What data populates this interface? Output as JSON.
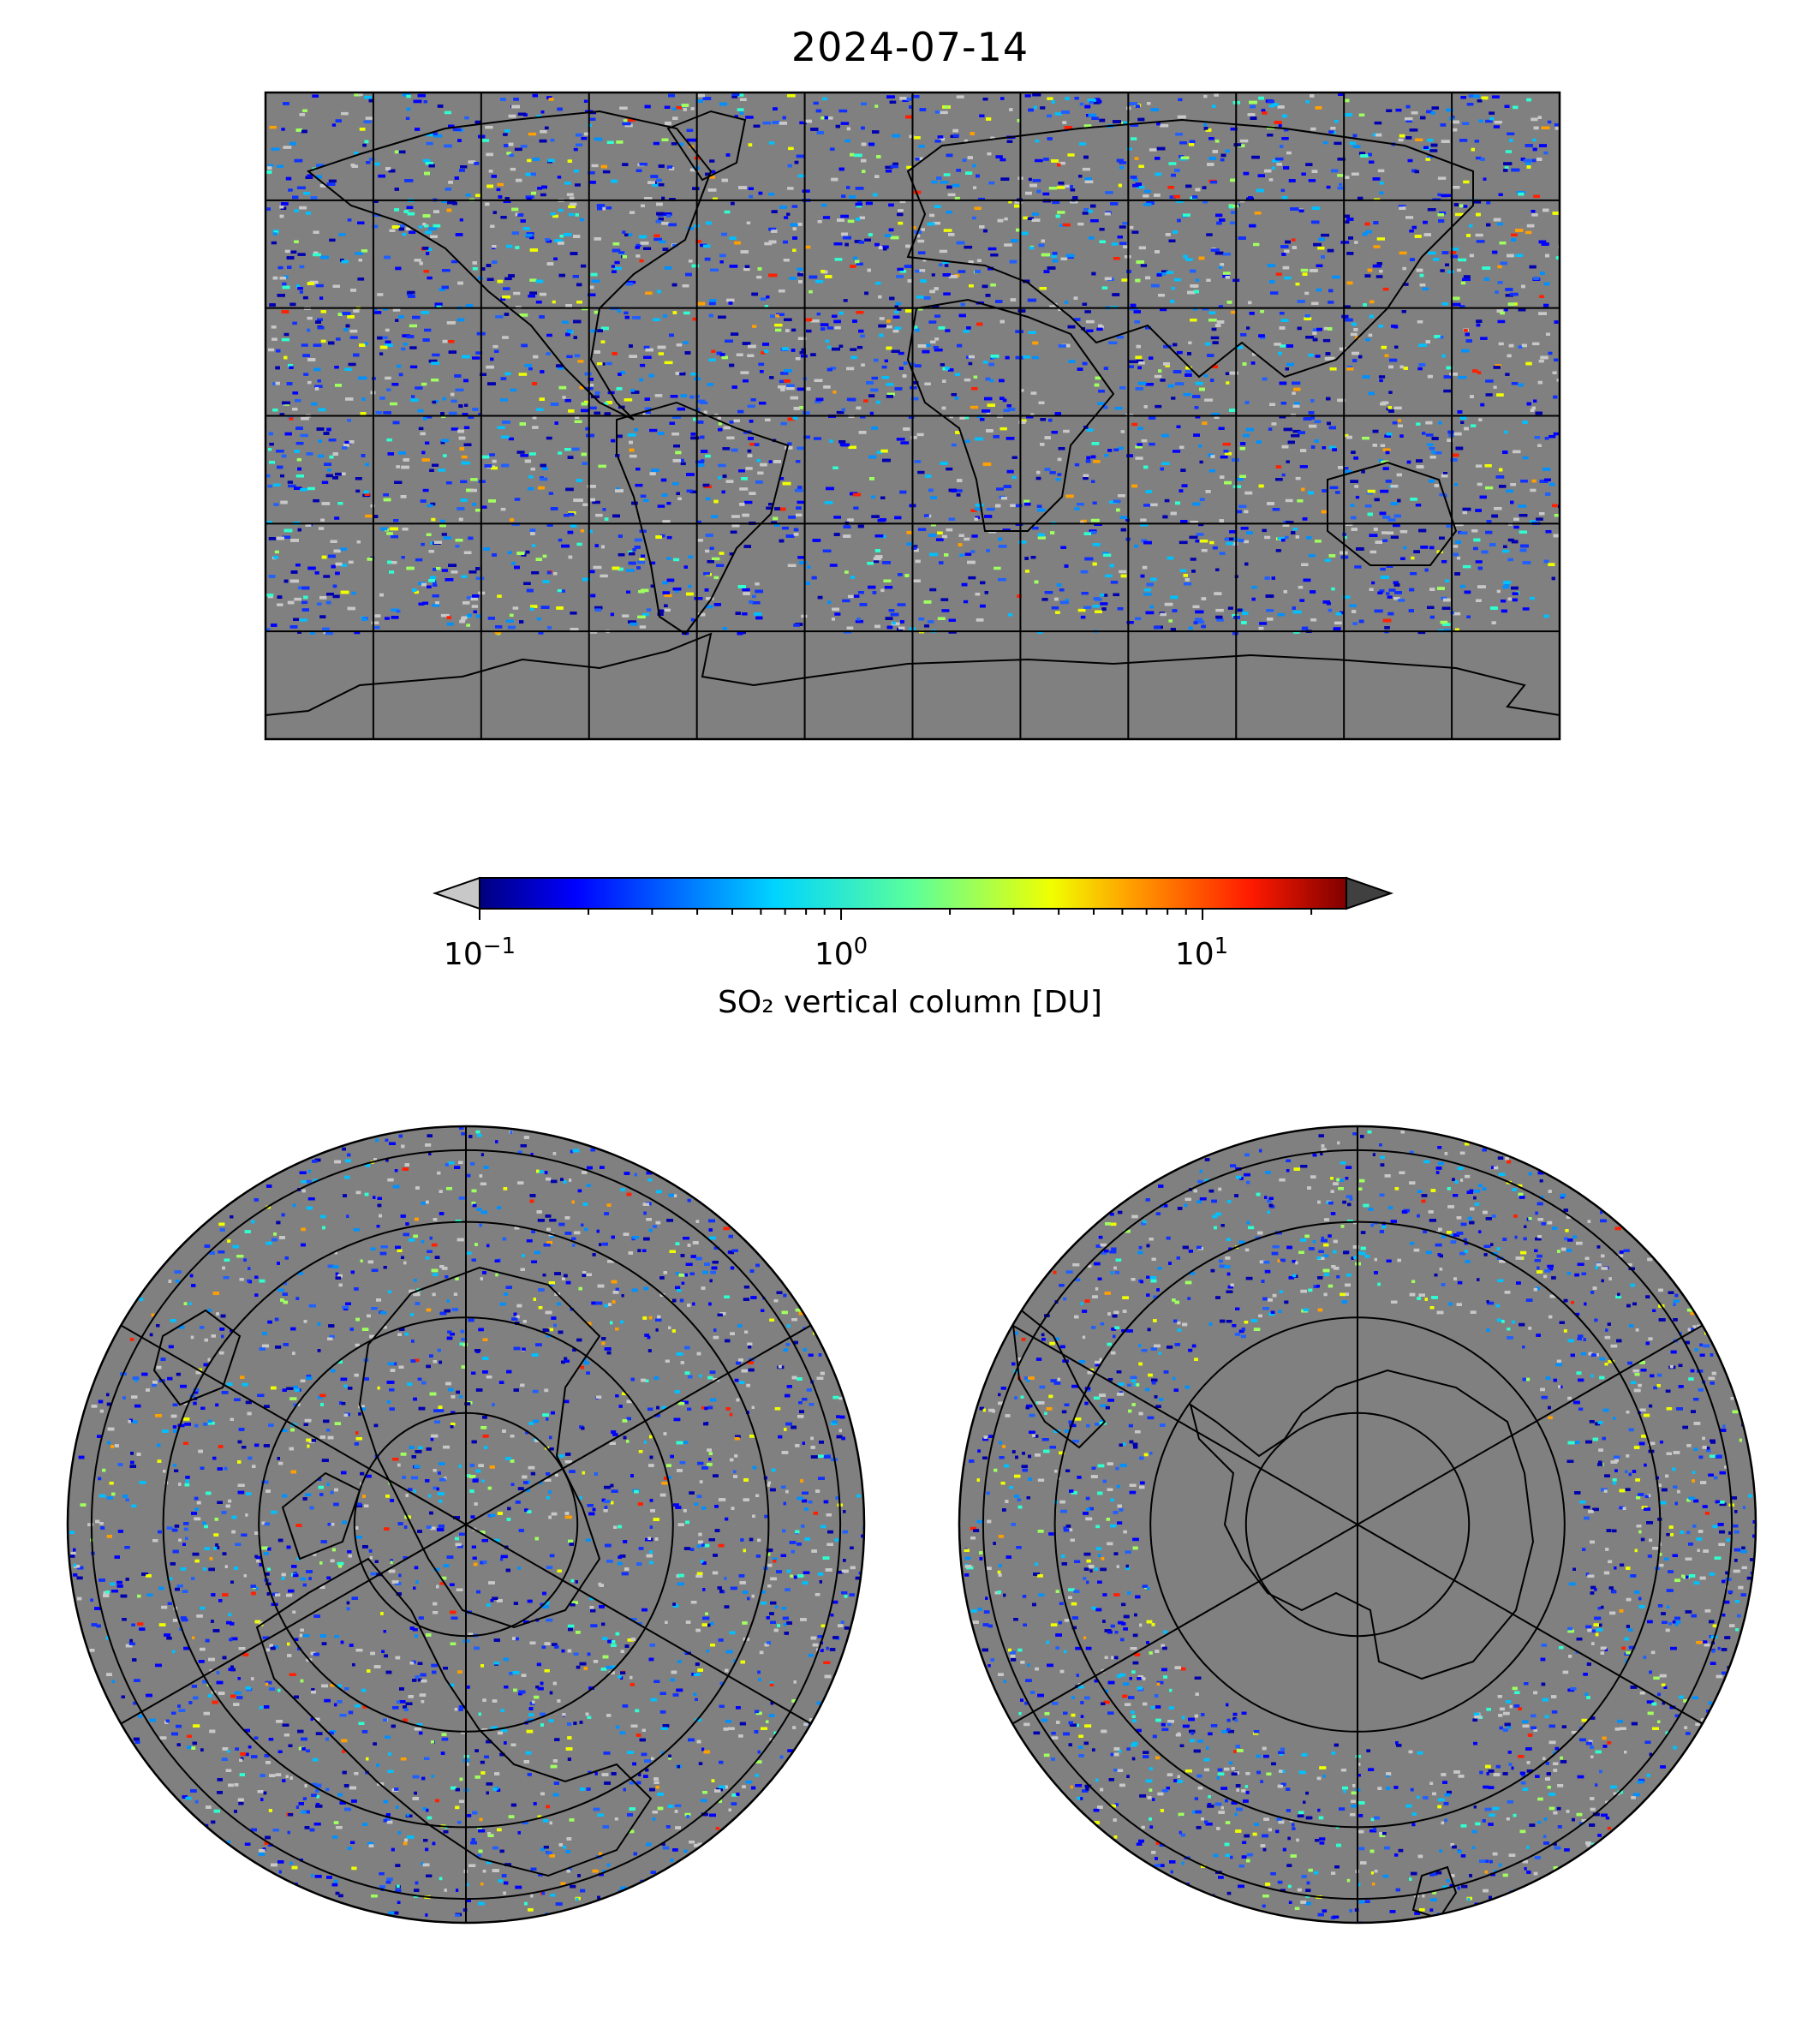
{
  "title": "2024-07-14",
  "colorbar": {
    "label": "SO₂ vertical column [DU]",
    "scale": "log",
    "range": [
      0.1,
      25
    ],
    "colormap": "jet",
    "under_color": "#c8c8c8",
    "over_color": "#404040",
    "ticks": [
      {
        "base": "10",
        "exp": "−1",
        "value": 0.1
      },
      {
        "base": "10",
        "exp": "0",
        "value": 1
      },
      {
        "base": "10",
        "exp": "1",
        "value": 10
      }
    ]
  },
  "maps": {
    "global": {
      "projection": "equirectangular",
      "background_color": "#808080",
      "gridlines": true
    },
    "north_polar": {
      "projection": "north-polar-stereographic",
      "background_color": "#808080"
    },
    "south_polar": {
      "projection": "south-polar-stereographic",
      "background_color": "#808080"
    }
  }
}
